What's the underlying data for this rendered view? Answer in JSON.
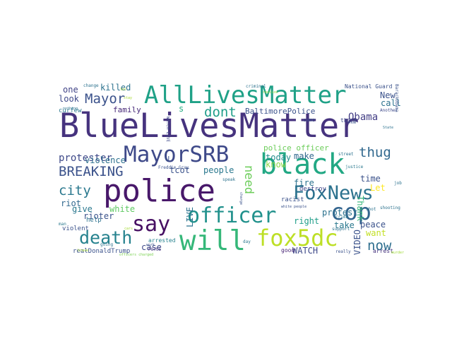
{
  "words": [
    {
      "id": "w001",
      "text": "BlueLivesMatter",
      "color": "#46337e"
    },
    {
      "id": "w002",
      "text": "police",
      "color": "#48186a"
    },
    {
      "id": "w003",
      "text": "AllLivesMatter",
      "color": "#1fa187"
    },
    {
      "id": "w004",
      "text": "black",
      "color": "#22a884"
    },
    {
      "id": "w005",
      "text": "MayorSRB",
      "color": "#3e4989"
    },
    {
      "id": "w006",
      "text": "FoxNews",
      "color": "#2c728e"
    },
    {
      "id": "w007",
      "text": "cop",
      "color": "#32648e"
    },
    {
      "id": "w008",
      "text": "officer",
      "color": "#21918c"
    },
    {
      "id": "w009",
      "text": "say",
      "color": "#471063"
    },
    {
      "id": "w010",
      "text": "will",
      "color": "#35b779"
    },
    {
      "id": "w011",
      "text": "fox5dc",
      "color": "#bddf26"
    },
    {
      "id": "w012",
      "text": "death",
      "color": "#26828e"
    },
    {
      "id": "w013",
      "text": "BREAKING",
      "color": "#3b528b"
    },
    {
      "id": "w014",
      "text": "city",
      "color": "#2a788e"
    },
    {
      "id": "w015",
      "text": "Mayor",
      "color": "#3b528b"
    },
    {
      "id": "w016",
      "text": "dont",
      "color": "#1f9e89"
    },
    {
      "id": "w017",
      "text": "thug",
      "color": "#31688e"
    },
    {
      "id": "w018",
      "text": "now",
      "color": "#2e6e8e"
    },
    {
      "id": "w019",
      "text": "need",
      "color": "#6ccd5a"
    },
    {
      "id": "w020",
      "text": "protester",
      "color": "#3e4989"
    },
    {
      "id": "w021",
      "text": "killed",
      "color": "#2c728e"
    },
    {
      "id": "w022",
      "text": "BaltimorePolice",
      "color": "#3b528b"
    },
    {
      "id": "w023",
      "text": "police officer",
      "color": "#6ccd5a"
    },
    {
      "id": "w024",
      "text": "Obama",
      "color": "#433e85"
    },
    {
      "id": "w025",
      "text": "violence",
      "color": "#2d708e"
    },
    {
      "id": "w026",
      "text": "family",
      "color": "#482979"
    },
    {
      "id": "w027",
      "text": "look",
      "color": "#3e4989"
    },
    {
      "id": "w028",
      "text": "one",
      "color": "#414487"
    },
    {
      "id": "w029",
      "text": "New",
      "color": "#3b528b"
    },
    {
      "id": "w030",
      "text": "call",
      "color": "#2c728e"
    },
    {
      "id": "w031",
      "text": "s",
      "color": "#25ac82"
    },
    {
      "id": "w032",
      "text": "tcot",
      "color": "#3b528b"
    },
    {
      "id": "w033",
      "text": "people",
      "color": "#2a788e"
    },
    {
      "id": "w034",
      "text": "make",
      "color": "#31688e"
    },
    {
      "id": "w035",
      "text": "today",
      "color": "#228c8d"
    },
    {
      "id": "w036",
      "text": "know",
      "color": "#8bd646"
    },
    {
      "id": "w037",
      "text": "fire",
      "color": "#2c728e"
    },
    {
      "id": "w038",
      "text": "right",
      "color": "#1f9e89"
    },
    {
      "id": "w039",
      "text": "protest",
      "color": "#2c728e"
    },
    {
      "id": "w040",
      "text": "take",
      "color": "#2a788e"
    },
    {
      "id": "w041",
      "text": "want",
      "color": "#c2df23"
    },
    {
      "id": "w042",
      "text": "peace",
      "color": "#3b528b"
    },
    {
      "id": "w043",
      "text": "time",
      "color": "#3b528b"
    },
    {
      "id": "w044",
      "text": "Let",
      "color": "#fde725"
    },
    {
      "id": "w045",
      "text": "give",
      "color": "#2a788e"
    },
    {
      "id": "w046",
      "text": "white",
      "color": "#5ec962"
    },
    {
      "id": "w047",
      "text": "rioter",
      "color": "#3b528b"
    },
    {
      "id": "w048",
      "text": "riot",
      "color": "#31688e"
    },
    {
      "id": "w049",
      "text": "case",
      "color": "#3e4989"
    },
    {
      "id": "w050",
      "text": "arrested",
      "color": "#26828e"
    },
    {
      "id": "w051",
      "text": "WATCH",
      "color": "#3e4989"
    },
    {
      "id": "w052",
      "text": "VIDEO",
      "color": "#3b528b"
    },
    {
      "id": "w053",
      "text": "LIVE",
      "color": "#2c728e"
    },
    {
      "id": "w054",
      "text": "racist",
      "color": "#3b528b"
    },
    {
      "id": "w055",
      "text": "destroy",
      "color": "#414487"
    },
    {
      "id": "w056",
      "text": "Thank",
      "color": "#35b779"
    },
    {
      "id": "w057",
      "text": "curfew",
      "color": "#2a788e"
    },
    {
      "id": "w058",
      "text": "help",
      "color": "#2c728e"
    },
    {
      "id": "w059",
      "text": "violent",
      "color": "#3b528b"
    },
    {
      "id": "w060",
      "text": "realDonaldTrump",
      "color": "#3b528b"
    },
    {
      "id": "w061",
      "text": "POTUS",
      "color": "#46337e"
    },
    {
      "id": "w062",
      "text": "good",
      "color": "#482475"
    },
    {
      "id": "w063",
      "text": "arrest",
      "color": "#46337e"
    },
    {
      "id": "w064",
      "text": "National Guard",
      "color": "#3b528b"
    },
    {
      "id": "w065",
      "text": "think",
      "color": "#3e4989"
    },
    {
      "id": "w066",
      "text": "come",
      "color": "#3b528b"
    },
    {
      "id": "w067",
      "text": "justice",
      "color": "#2a788e"
    },
    {
      "id": "w068",
      "text": "crime",
      "color": "#2a788e"
    },
    {
      "id": "w069",
      "text": "shooting",
      "color": "#2c728e"
    },
    {
      "id": "w070",
      "text": "support",
      "color": "#2c728e"
    },
    {
      "id": "w071",
      "text": "really",
      "color": "#3b528b"
    },
    {
      "id": "w072",
      "text": "street",
      "color": "#2c728e"
    },
    {
      "id": "w073",
      "text": "job",
      "color": "#2c728e"
    },
    {
      "id": "w074",
      "text": "Another",
      "color": "#3e4989"
    },
    {
      "id": "w075",
      "text": "change",
      "color": "#2c728e"
    },
    {
      "id": "w076",
      "text": "nothing",
      "color": "#2c728e"
    },
    {
      "id": "w077",
      "text": "criminal",
      "color": "#2c728e"
    },
    {
      "id": "w078",
      "text": "going",
      "color": "#2c728e"
    },
    {
      "id": "w079",
      "text": "man",
      "color": "#2a788e"
    },
    {
      "id": "w080",
      "text": "work",
      "color": "#3b528b"
    },
    {
      "id": "w081",
      "text": "day",
      "color": "#2a788e"
    },
    {
      "id": "w082",
      "text": "charge",
      "color": "#3b528b"
    },
    {
      "id": "w083",
      "text": "speak",
      "color": "#2c728e"
    },
    {
      "id": "w084",
      "text": "show",
      "color": "#3b528b"
    },
    {
      "id": "w085",
      "text": "shot",
      "color": "#2c728e"
    },
    {
      "id": "w086",
      "text": "State",
      "color": "#2c728e"
    },
    {
      "id": "w087",
      "text": "BarackObama",
      "color": "#3b528b"
    },
    {
      "id": "w088",
      "text": "Freddie Gray",
      "color": "#3b528b"
    },
    {
      "id": "w089",
      "text": "WATCH LIVE",
      "color": "#3e4989"
    },
    {
      "id": "w090",
      "text": "officers charged",
      "color": "#7ad151"
    },
    {
      "id": "w091",
      "text": "white people",
      "color": "#3b528b"
    },
    {
      "id": "w092",
      "text": "lol",
      "color": "#b5de2b"
    },
    {
      "id": "w093",
      "text": "murder",
      "color": "#a0da39"
    },
    {
      "id": "w094",
      "text": "U",
      "color": "#3b528b"
    },
    {
      "id": "w095",
      "text": "realize",
      "color": "#93d741"
    },
    {
      "id": "w096",
      "text": "stay",
      "color": "#a8db34"
    },
    {
      "id": "w097",
      "text": "house",
      "color": "#9dd93b"
    },
    {
      "id": "w098",
      "text": "cars",
      "color": "#a5db36"
    },
    {
      "id": "w099",
      "text": "brave",
      "color": "#aadc32"
    }
  ]
}
